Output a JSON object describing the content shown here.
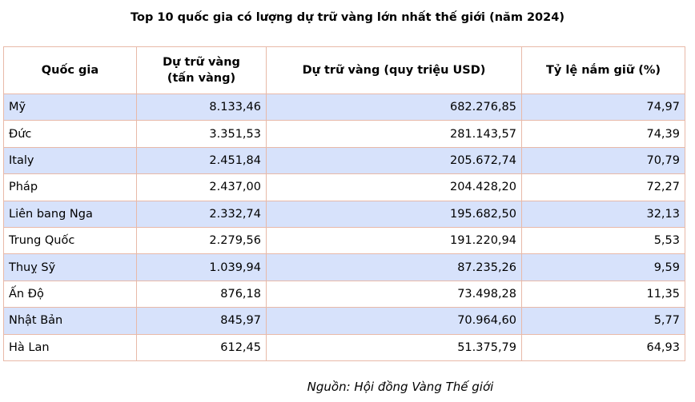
{
  "title": "Top 10 quốc gia có lượng dự trữ vàng lớn nhất thế giới (năm 2024)",
  "table": {
    "headers": {
      "country": "Quốc gia",
      "tons_line1": "Dự trữ vàng",
      "tons_line2": "(tấn vàng)",
      "usd": "Dự trữ vàng (quy triệu USD)",
      "ratio": "Tỷ lệ nắm giữ (%)"
    },
    "rows": [
      {
        "country": "Mỹ",
        "tons": "8.133,46",
        "usd": "682.276,85",
        "ratio": "74,97"
      },
      {
        "country": "Đức",
        "tons": "3.351,53",
        "usd": "281.143,57",
        "ratio": "74,39"
      },
      {
        "country": "Italy",
        "tons": "2.451,84",
        "usd": "205.672,74",
        "ratio": "70,79"
      },
      {
        "country": "Pháp",
        "tons": "2.437,00",
        "usd": "204.428,20",
        "ratio": "72,27"
      },
      {
        "country": "Liên bang Nga",
        "tons": "2.332,74",
        "usd": "195.682,50",
        "ratio": "32,13"
      },
      {
        "country": "Trung Quốc",
        "tons": "2.279,56",
        "usd": "191.220,94",
        "ratio": "5,53"
      },
      {
        "country": "Thuỵ Sỹ",
        "tons": "1.039,94",
        "usd": "87.235,26",
        "ratio": "9,59"
      },
      {
        "country": "Ấn Độ",
        "tons": "876,18",
        "usd": "73.498,28",
        "ratio": "11,35"
      },
      {
        "country": "Nhật Bản",
        "tons": "845,97",
        "usd": "70.964,60",
        "ratio": "5,77"
      },
      {
        "country": "Hà Lan",
        "tons": "612,45",
        "usd": "51.375,79",
        "ratio": "64,93"
      }
    ]
  },
  "source": "Nguồn: Hội đồng Vàng Thế giới",
  "colors": {
    "row_shade": "#d7e2fb",
    "border": "#e8b9a8"
  }
}
